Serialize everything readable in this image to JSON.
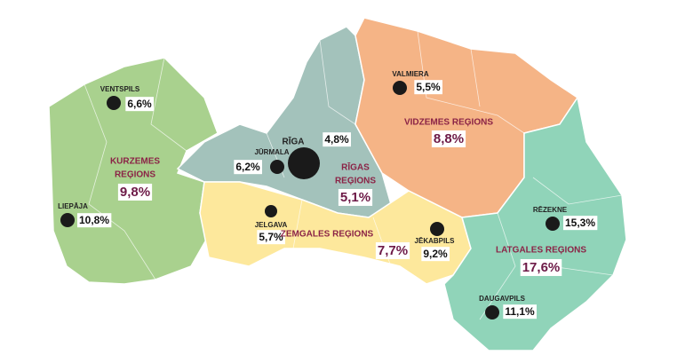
{
  "regions": [
    {
      "name_lines": [
        "KURZEMES",
        "REĢIONS"
      ],
      "value": "9,8%"
    },
    {
      "name_lines": [
        "RĪGAS",
        "REĢIONS"
      ],
      "value": "5,1%"
    },
    {
      "name_lines": [
        "VIDZEMES REĢIONS"
      ],
      "value": "8,8%"
    },
    {
      "name_lines": [
        "ZEMGALES REĢIONS"
      ],
      "value": "7,7%"
    },
    {
      "name_lines": [
        "LATGALES REĢIONS"
      ],
      "value": "17,6%"
    }
  ],
  "cities": [
    {
      "name": "VENTSPILS",
      "value": "6,6%"
    },
    {
      "name": "LIEPĀJA",
      "value": "10,8%"
    },
    {
      "name": "JŪRMALA",
      "value": "6,2%"
    },
    {
      "name": "RĪGA",
      "value": "4,8%"
    },
    {
      "name": "JELGAVA",
      "value": "5,7%"
    },
    {
      "name": "VALMIERA",
      "value": "5,5%"
    },
    {
      "name": "JĒKABPILS",
      "value": "9,2%"
    },
    {
      "name": "RĒZEKNE",
      "value": "15,3%"
    },
    {
      "name": "DAUGAVPILS",
      "value": "11,1%"
    }
  ]
}
